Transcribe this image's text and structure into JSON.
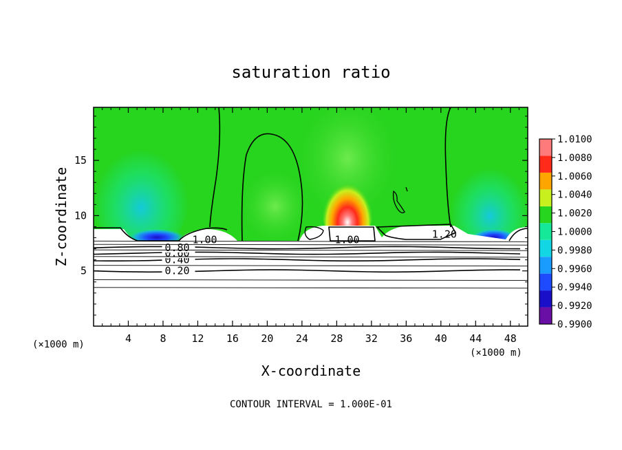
{
  "chart_data": {
    "type": "heatmap",
    "title": "saturation ratio",
    "xlabel": "X-coordinate",
    "ylabel": "Z-coordinate",
    "x_unit": "(×1000 m)",
    "y_unit": "(×1000 m)",
    "xlim": [
      0,
      50
    ],
    "ylim": [
      0,
      19.8
    ],
    "x_ticks": [
      4,
      8,
      12,
      16,
      20,
      24,
      28,
      32,
      36,
      40,
      44,
      48
    ],
    "y_ticks": [
      5,
      10,
      15
    ],
    "colorbar": {
      "min": 0.99,
      "max": 1.01,
      "tick_values": [
        0.99,
        0.992,
        0.994,
        0.996,
        0.998,
        1.0,
        1.002,
        1.004,
        1.006,
        1.008,
        1.01
      ],
      "tick_labels": [
        "0.9900",
        "0.9920",
        "0.9940",
        "0.9960",
        "0.9980",
        "1.0000",
        "1.0020",
        "1.0040",
        "1.0060",
        "1.0080",
        "1.0100"
      ],
      "colors": [
        "#6a0fa6",
        "#1a0fc8",
        "#1f4bff",
        "#1a9cff",
        "#12d6e4",
        "#16e89a",
        "#27d41e",
        "#c8f01e",
        "#ffa500",
        "#ff2a1a",
        "#ff7a7a"
      ]
    },
    "contour_lines": [
      {
        "value": 0.2,
        "label": "0.20",
        "z": 5.0
      },
      {
        "value": 0.4,
        "label": "0.40",
        "z": 6.0
      },
      {
        "value": 0.6,
        "label": "0.60",
        "z": 6.6
      },
      {
        "value": 0.8,
        "label": "0.80",
        "z": 7.1
      }
    ],
    "contour_labels": [
      {
        "label": "1.00",
        "x": 12.8,
        "z": 7.8
      },
      {
        "label": "1.00",
        "x": 29.2,
        "z": 7.8
      },
      {
        "label": "1.20",
        "x": 40.4,
        "z": 8.3
      }
    ],
    "contour_interval_text": "CONTOUR INTERVAL = 1.000E-01"
  }
}
